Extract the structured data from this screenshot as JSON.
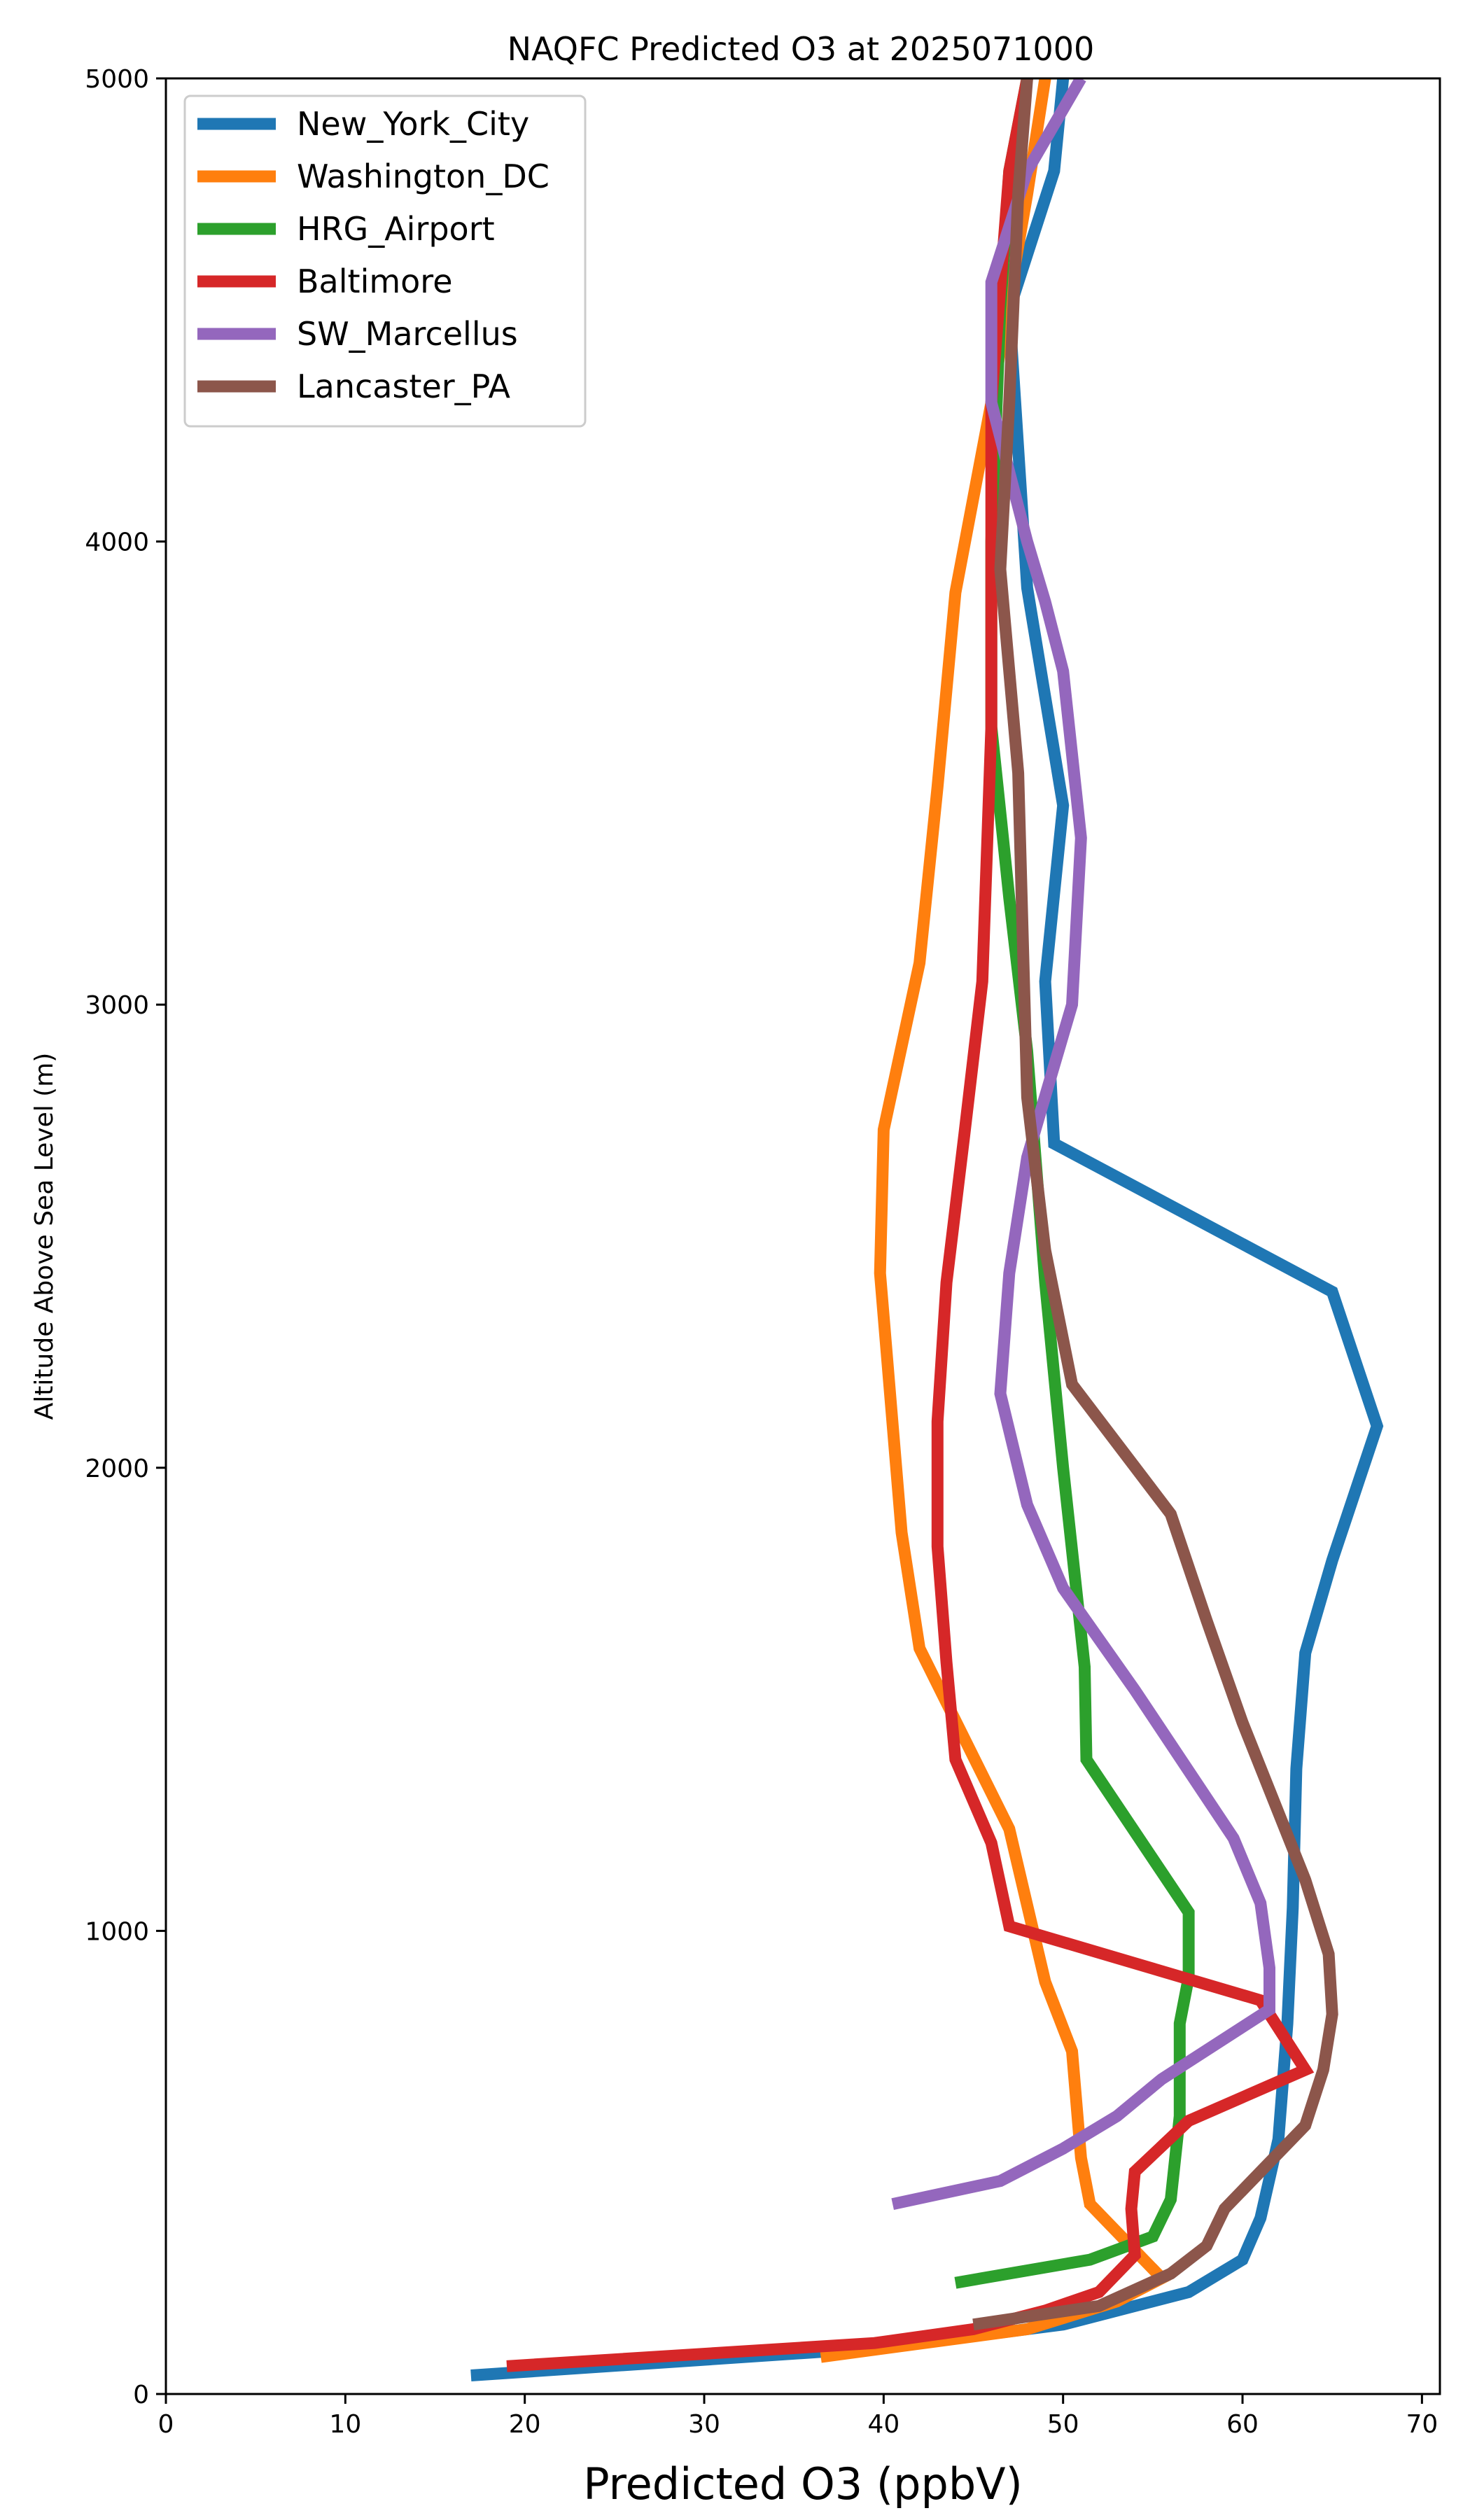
{
  "chart_data": {
    "type": "line",
    "title": "NAQFC Predicted O3 at 2025071000",
    "xlabel": "Predicted O3 (ppbV)",
    "ylabel": "Altitude Above Sea Level (m)",
    "xlim": [
      0,
      71
    ],
    "ylim": [
      0,
      5000
    ],
    "xticks": [
      0,
      10,
      20,
      30,
      40,
      50,
      60,
      70
    ],
    "yticks": [
      0,
      1000,
      2000,
      3000,
      4000,
      5000
    ],
    "grid": false,
    "legend_position": "top-left",
    "series": [
      {
        "name": "New_York_City",
        "color": "#1f77b4",
        "x": [
          17.0,
          40.0,
          50.0,
          57.0,
          60.0,
          61.0,
          62.0,
          62.5,
          62.8,
          63.0,
          63.5,
          65.0,
          67.5,
          65.0,
          49.5,
          49.0,
          50.0,
          48.0,
          47.0,
          49.5,
          50.0
        ],
        "y": [
          40,
          100,
          150,
          220,
          290,
          380,
          550,
          800,
          1050,
          1350,
          1600,
          1800,
          2090,
          2380,
          2700,
          3050,
          3430,
          3900,
          4500,
          4800,
          5000
        ]
      },
      {
        "name": "Washington_DC",
        "color": "#ff7f0e",
        "x": [
          36.5,
          48.0,
          53.0,
          55.5,
          53.5,
          51.5,
          51.0,
          50.5,
          49.0,
          47.0,
          42.0,
          41.0,
          39.8,
          40.0,
          42.0,
          43.0,
          44.0,
          46.0,
          48.0,
          49.0
        ],
        "y": [
          80,
          140,
          200,
          250,
          330,
          410,
          510,
          740,
          890,
          1220,
          1610,
          1860,
          2420,
          2730,
          3090,
          3470,
          3890,
          4300,
          4750,
          5000
        ]
      },
      {
        "name": "HRG_Airport",
        "color": "#2ca02c",
        "x": [
          44.0,
          51.5,
          55.0,
          56.0,
          56.5,
          56.5,
          57.0,
          57.0,
          51.3,
          51.2,
          50.0,
          49.0,
          48.0,
          47.0,
          46.0,
          46.0,
          46.5,
          47.0,
          48.0
        ],
        "y": [
          240,
          290,
          340,
          420,
          600,
          800,
          900,
          1040,
          1370,
          1570,
          2000,
          2400,
          2900,
          3230,
          3600,
          4000,
          4500,
          4800,
          5000
        ]
      },
      {
        "name": "Baltimore",
        "color": "#d62728",
        "x": [
          19.0,
          39.5,
          45.0,
          49.0,
          52.0,
          54.0,
          53.8,
          54.0,
          57.0,
          63.5,
          61.0,
          47.0,
          46.0,
          44.0,
          43.5,
          43.0,
          43.0,
          43.5,
          44.5,
          45.5,
          46.0,
          46.0,
          47.0,
          48.0
        ],
        "y": [
          60,
          110,
          140,
          180,
          220,
          300,
          400,
          480,
          590,
          700,
          850,
          1010,
          1190,
          1370,
          1580,
          1830,
          2100,
          2400,
          2720,
          3050,
          3600,
          4300,
          4800,
          5000
        ]
      },
      {
        "name": "SW_Marcellus",
        "color": "#9467bd",
        "x": [
          40.5,
          46.5,
          50.0,
          53.0,
          55.5,
          61.5,
          61.5,
          61.0,
          59.5,
          54.0,
          50.0,
          48.0,
          46.5,
          47.0,
          48.0,
          50.5,
          51.0,
          50.0,
          49.0,
          48.0,
          47.0,
          46.0,
          46.0,
          48.0,
          51.0
        ],
        "y": [
          410,
          460,
          530,
          600,
          680,
          830,
          920,
          1060,
          1200,
          1520,
          1740,
          1920,
          2160,
          2420,
          2670,
          3000,
          3360,
          3720,
          3870,
          4000,
          4150,
          4300,
          4560,
          4800,
          5000
        ]
      },
      {
        "name": "Lancaster_PA",
        "color": "#8c564b",
        "x": [
          45.0,
          52.0,
          56.0,
          58.0,
          59.0,
          63.5,
          64.5,
          65.0,
          64.8,
          63.5,
          60.0,
          58.0,
          56.0,
          50.5,
          49.0,
          48.0,
          47.5,
          46.5,
          47.0,
          47.5,
          48.0
        ],
        "y": [
          150,
          190,
          260,
          320,
          400,
          580,
          700,
          820,
          950,
          1110,
          1450,
          1670,
          1900,
          2180,
          2470,
          2800,
          3500,
          3940,
          4300,
          4750,
          5000
        ]
      }
    ]
  }
}
